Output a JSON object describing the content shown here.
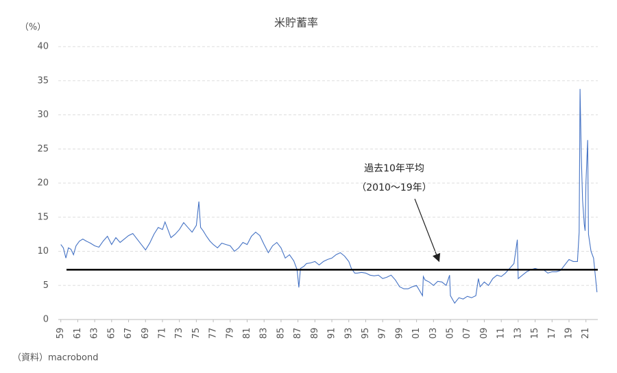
{
  "chart_data": {
    "type": "line",
    "title": "米貯蓄率",
    "y_unit_label": "（%）",
    "source": "（資料）macrobond",
    "color": "#4472c4",
    "grid": true,
    "x": [
      1959.0,
      1959.3,
      1959.6,
      1959.9,
      1960.2,
      1960.5,
      1960.8,
      1961.2,
      1961.6,
      1962.0,
      1962.5,
      1963.0,
      1963.5,
      1964.0,
      1964.5,
      1965.0,
      1965.5,
      1966.0,
      1966.5,
      1967.0,
      1967.5,
      1968.0,
      1968.5,
      1969.0,
      1969.5,
      1970.0,
      1970.5,
      1971.0,
      1971.3,
      1971.7,
      1972.0,
      1972.5,
      1973.0,
      1973.5,
      1974.0,
      1974.5,
      1975.0,
      1975.3,
      1975.5,
      1975.8,
      1976.2,
      1976.6,
      1977.0,
      1977.5,
      1978.0,
      1978.5,
      1979.0,
      1979.5,
      1980.0,
      1980.5,
      1981.0,
      1981.5,
      1982.0,
      1982.5,
      1983.0,
      1983.5,
      1984.0,
      1984.5,
      1985.0,
      1985.5,
      1986.0,
      1986.5,
      1986.9,
      1987.1,
      1987.3,
      1987.7,
      1988.0,
      1988.5,
      1989.0,
      1989.5,
      1990.0,
      1990.5,
      1991.0,
      1991.5,
      1992.0,
      1992.5,
      1993.0,
      1993.3,
      1993.7,
      1994.0,
      1994.5,
      1995.0,
      1995.5,
      1996.0,
      1996.5,
      1997.0,
      1997.5,
      1998.0,
      1998.5,
      1999.0,
      1999.5,
      2000.0,
      2000.5,
      2001.0,
      2001.7,
      2001.8,
      2002.0,
      2002.5,
      2003.0,
      2003.5,
      2004.0,
      2004.5,
      2004.9,
      2005.0,
      2005.5,
      2006.0,
      2006.5,
      2007.0,
      2007.5,
      2008.0,
      2008.3,
      2008.5,
      2009.0,
      2009.5,
      2010.0,
      2010.5,
      2011.0,
      2011.5,
      2012.0,
      2012.5,
      2012.9,
      2013.0,
      2013.5,
      2014.0,
      2014.5,
      2015.0,
      2015.5,
      2016.0,
      2016.5,
      2017.0,
      2017.5,
      2018.0,
      2018.5,
      2019.0,
      2019.5,
      2020.0,
      2020.2,
      2020.3,
      2020.45,
      2020.6,
      2020.8,
      2020.9,
      2021.0,
      2021.2,
      2021.3,
      2021.6,
      2021.9,
      2022.1,
      2022.3
    ],
    "values": [
      11,
      10.5,
      9.0,
      10.5,
      10.3,
      9.5,
      10.8,
      11.5,
      11.8,
      11.5,
      11.2,
      10.8,
      10.6,
      11.5,
      12.2,
      11.0,
      12.0,
      11.3,
      11.8,
      12.3,
      12.6,
      11.8,
      11.0,
      10.2,
      11.2,
      12.5,
      13.5,
      13.2,
      14.3,
      13.0,
      12.0,
      12.5,
      13.2,
      14.2,
      13.5,
      12.8,
      13.8,
      17.3,
      13.5,
      13.0,
      12.2,
      11.5,
      11.0,
      10.5,
      11.2,
      11.0,
      10.8,
      10.0,
      10.5,
      11.3,
      11.0,
      12.2,
      12.8,
      12.3,
      11.0,
      9.8,
      10.8,
      11.3,
      10.5,
      9.0,
      9.5,
      8.6,
      7.3,
      4.7,
      7.5,
      7.8,
      8.2,
      8.3,
      8.5,
      8.0,
      8.5,
      8.8,
      9.0,
      9.5,
      9.8,
      9.3,
      8.5,
      7.5,
      6.8,
      6.8,
      6.9,
      6.8,
      6.5,
      6.4,
      6.5,
      6.0,
      6.2,
      6.5,
      5.8,
      4.8,
      4.5,
      4.5,
      4.8,
      5.0,
      3.5,
      6.3,
      5.8,
      5.5,
      5.0,
      5.6,
      5.5,
      5.0,
      6.5,
      3.5,
      2.4,
      3.2,
      3.0,
      3.4,
      3.2,
      3.5,
      6.0,
      4.8,
      5.5,
      5.0,
      6.0,
      6.5,
      6.3,
      6.8,
      7.5,
      8.2,
      11.7,
      6.0,
      6.5,
      7.0,
      7.3,
      7.5,
      7.3,
      7.3,
      6.8,
      7.0,
      7.0,
      7.2,
      8.0,
      8.8,
      8.5,
      8.5,
      12.8,
      33.8,
      24.0,
      17.5,
      14.0,
      13.0,
      20.0,
      26.3,
      12.5,
      10.0,
      9.0,
      6.5,
      4.0
    ],
    "reference_line": {
      "value": 7.3,
      "label_lines": [
        "過去10年平均",
        "（2010～19年）"
      ]
    },
    "xlim": [
      1958.7,
      2022.4
    ],
    "ylim": [
      0,
      40
    ],
    "yticks": [
      0,
      5,
      10,
      15,
      20,
      25,
      30,
      35,
      40
    ],
    "xticks": [
      {
        "value": 1959,
        "label": "59"
      },
      {
        "value": 1961,
        "label": "61"
      },
      {
        "value": 1963,
        "label": "63"
      },
      {
        "value": 1965,
        "label": "65"
      },
      {
        "value": 1967,
        "label": "67"
      },
      {
        "value": 1969,
        "label": "69"
      },
      {
        "value": 1971,
        "label": "71"
      },
      {
        "value": 1973,
        "label": "73"
      },
      {
        "value": 1975,
        "label": "75"
      },
      {
        "value": 1977,
        "label": "77"
      },
      {
        "value": 1979,
        "label": "79"
      },
      {
        "value": 1981,
        "label": "81"
      },
      {
        "value": 1983,
        "label": "83"
      },
      {
        "value": 1985,
        "label": "85"
      },
      {
        "value": 1987,
        "label": "87"
      },
      {
        "value": 1989,
        "label": "89"
      },
      {
        "value": 1991,
        "label": "91"
      },
      {
        "value": 1993,
        "label": "93"
      },
      {
        "value": 1995,
        "label": "95"
      },
      {
        "value": 1997,
        "label": "97"
      },
      {
        "value": 1999,
        "label": "99"
      },
      {
        "value": 2001,
        "label": "01"
      },
      {
        "value": 2003,
        "label": "03"
      },
      {
        "value": 2005,
        "label": "05"
      },
      {
        "value": 2007,
        "label": "07"
      },
      {
        "value": 2009,
        "label": "09"
      },
      {
        "value": 2011,
        "label": "11"
      },
      {
        "value": 2013,
        "label": "13"
      },
      {
        "value": 2015,
        "label": "15"
      },
      {
        "value": 2017,
        "label": "17"
      },
      {
        "value": 2019,
        "label": "19"
      },
      {
        "value": 2021,
        "label": "21"
      }
    ]
  }
}
